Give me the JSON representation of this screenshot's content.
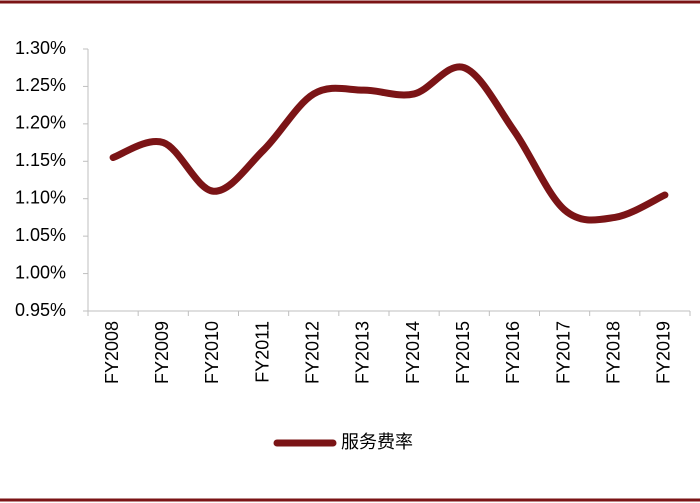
{
  "chart_data": {
    "type": "line",
    "categories": [
      "FY2008",
      "FY2009",
      "FY2010",
      "FY2011",
      "FY2012",
      "FY2013",
      "FY2014",
      "FY2015",
      "FY2016",
      "FY2017",
      "FY2018",
      "FY2019"
    ],
    "series": [
      {
        "name": "服务费率",
        "color": "#7b1416",
        "values": [
          1.155,
          1.175,
          1.11,
          1.165,
          1.24,
          1.245,
          1.24,
          1.275,
          1.19,
          1.085,
          1.075,
          1.105
        ]
      }
    ],
    "ylim": [
      0.95,
      1.3
    ],
    "yticks": [
      {
        "value": 0.95,
        "label": "0.95%"
      },
      {
        "value": 1.0,
        "label": "1.00%"
      },
      {
        "value": 1.05,
        "label": "1.05%"
      },
      {
        "value": 1.1,
        "label": "1.10%"
      },
      {
        "value": 1.15,
        "label": "1.15%"
      },
      {
        "value": 1.2,
        "label": "1.20%"
      },
      {
        "value": 1.25,
        "label": "1.25%"
      },
      {
        "value": 1.3,
        "label": "1.30%"
      }
    ],
    "smooth": true,
    "legend": "bottom"
  }
}
